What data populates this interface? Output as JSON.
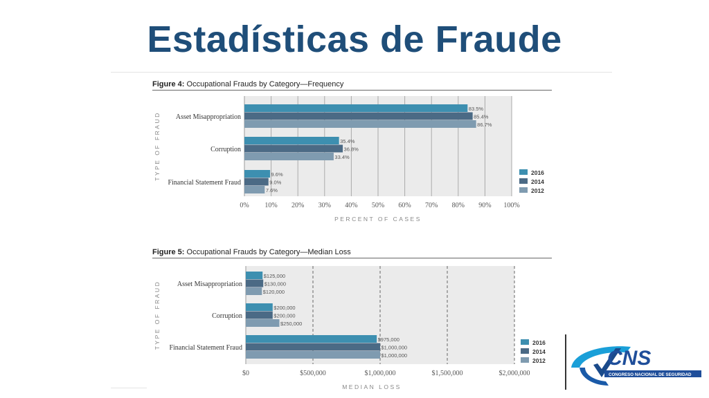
{
  "slide_title": "Estadísticas de Fraude",
  "colors": {
    "c2016": "#3d8fb0",
    "c2014": "#4b6a85",
    "c2012": "#7f9bb0",
    "title": "#1f4e79"
  },
  "logo": {
    "text": "CNS",
    "subtitle": "CONGRESO NACIONAL DE SEGURIDAD"
  },
  "chart_data": [
    {
      "type": "bar",
      "orientation": "horizontal",
      "title_bold": "Figure 4:",
      "title_rest": "Occupational Frauds by Category—Frequency",
      "categories": [
        "Asset Misappropriation",
        "Corruption",
        "Financial Statement Fraud"
      ],
      "series": [
        {
          "name": "2016",
          "values": [
            83.5,
            35.4,
            9.6
          ],
          "labels": [
            "83.5%",
            "35.4%",
            "9.6%"
          ]
        },
        {
          "name": "2014",
          "values": [
            85.4,
            36.8,
            9.0
          ],
          "labels": [
            "85.4%",
            "36.8%",
            "9.0%"
          ]
        },
        {
          "name": "2012",
          "values": [
            86.7,
            33.4,
            7.6
          ],
          "labels": [
            "86.7%",
            "33.4%",
            "7.6%"
          ]
        }
      ],
      "xlabel": "PERCENT OF CASES",
      "ylabel": "TYPE OF FRAUD",
      "xlim": [
        0,
        100
      ],
      "xticks": [
        "0%",
        "10%",
        "20%",
        "30%",
        "40%",
        "50%",
        "60%",
        "70%",
        "80%",
        "90%",
        "100%"
      ],
      "legend": "right"
    },
    {
      "type": "bar",
      "orientation": "horizontal",
      "title_bold": "Figure 5:",
      "title_rest": "Occupational Frauds by Category—Median Loss",
      "categories": [
        "Asset Misappropriation",
        "Corruption",
        "Financial Statement Fraud"
      ],
      "series": [
        {
          "name": "2016",
          "values": [
            125000,
            200000,
            975000
          ],
          "labels": [
            "$125,000",
            "$200,000",
            "$975,000"
          ]
        },
        {
          "name": "2014",
          "values": [
            130000,
            200000,
            1000000
          ],
          "labels": [
            "$130,000",
            "$200,000",
            "$1,000,000"
          ]
        },
        {
          "name": "2012",
          "values": [
            120000,
            250000,
            1000000
          ],
          "labels": [
            "$120,000",
            "$250,000",
            "$1,000,000"
          ]
        }
      ],
      "xlabel": "MEDIAN LOSS",
      "ylabel": "TYPE OF FRAUD",
      "xlim": [
        0,
        2000000
      ],
      "xticks": [
        "$0",
        "$500,000",
        "$1,000,000",
        "$1,500,000",
        "$2,000,000"
      ],
      "legend": "right"
    }
  ]
}
